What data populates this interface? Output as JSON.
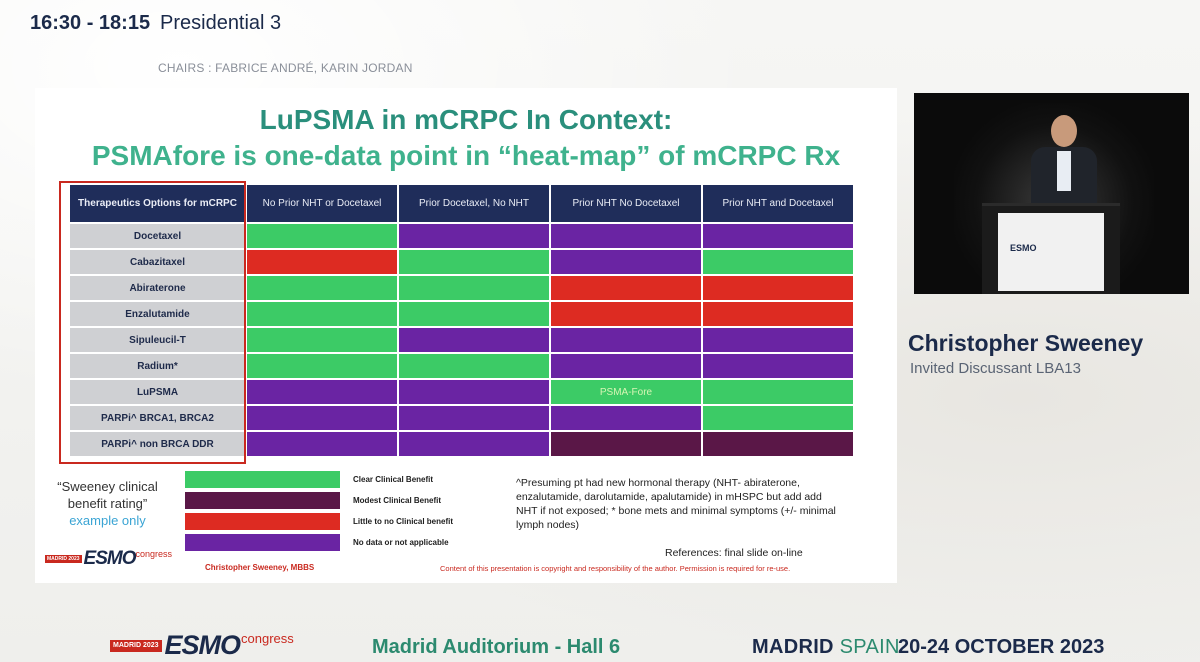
{
  "header": {
    "time": "16:30 - 18:15",
    "session": "Presidential 3",
    "chairs": "CHAIRS : FABRICE ANDRÉ, KARIN JORDAN"
  },
  "slide": {
    "title_line1": "LuPSMA in mCRPC In Context:",
    "title_line2": "PSMAfore is one-data point in “heat-map” of mCRPC Rx",
    "table": {
      "corner": "Therapeutics Options for mCRPC",
      "columns": [
        "No Prior NHT or Docetaxel",
        "Prior Docetaxel, No NHT",
        "Prior NHT No Docetaxel",
        "Prior NHT and Docetaxel"
      ],
      "rows": [
        {
          "label": "Docetaxel",
          "cells": [
            "green",
            "purple",
            "purple",
            "purple"
          ],
          "text": [
            "",
            "",
            "",
            ""
          ]
        },
        {
          "label": "Cabazitaxel",
          "cells": [
            "red",
            "green",
            "purple",
            "green"
          ],
          "text": [
            "",
            "",
            "",
            ""
          ]
        },
        {
          "label": "Abiraterone",
          "cells": [
            "green",
            "green",
            "red",
            "red"
          ],
          "text": [
            "",
            "",
            "",
            ""
          ]
        },
        {
          "label": "Enzalutamide",
          "cells": [
            "green",
            "green",
            "red",
            "red"
          ],
          "text": [
            "",
            "",
            "",
            ""
          ]
        },
        {
          "label": "Sipuleucil-T",
          "cells": [
            "green",
            "purple",
            "purple",
            "purple"
          ],
          "text": [
            "",
            "",
            "",
            ""
          ]
        },
        {
          "label": "Radium*",
          "cells": [
            "green",
            "green",
            "purple",
            "purple"
          ],
          "text": [
            "",
            "",
            "",
            ""
          ]
        },
        {
          "label": "LuPSMA",
          "cells": [
            "purple",
            "purple",
            "green",
            "green"
          ],
          "text": [
            "",
            "",
            "PSMA-Fore",
            ""
          ]
        },
        {
          "label": "PARPi^ BRCA1, BRCA2",
          "cells": [
            "purple",
            "purple",
            "purple",
            "green"
          ],
          "text": [
            "",
            "",
            "",
            ""
          ]
        },
        {
          "label": "PARPi^ non BRCA DDR",
          "cells": [
            "purple",
            "purple",
            "maroon",
            "maroon"
          ],
          "text": [
            "",
            "",
            "",
            ""
          ]
        }
      ]
    },
    "legend": [
      {
        "color": "green",
        "label": "Clear Clinical Benefit"
      },
      {
        "color": "maroon",
        "label": "Modest Clinical Benefit"
      },
      {
        "color": "red",
        "label": "Little to no Clinical benefit"
      },
      {
        "color": "purple",
        "label": "No data or not applicable"
      }
    ],
    "rating_line1": "“Sweeney clinical",
    "rating_line2": "benefit rating”",
    "rating_line3": "example only",
    "footnote": "^Presuming pt had new hormonal therapy (NHT- abiraterone, enzalutamide, darolutamide, apalutamide) in mHSPC but add add NHT if not exposed; * bone mets and minimal symptoms (+/- minimal lymph nodes)",
    "references": "References: final slide on-line",
    "author": "Christopher Sweeney, MBBS",
    "copyright": "Content of this presentation is copyright and responsibility of the author. Permission is required for re-use.",
    "logo_box": "MADRID 2023",
    "logo_word": "ESMO",
    "logo_sup": "congress"
  },
  "colors": {
    "green": "#3ccb66",
    "purple": "#6a24a3",
    "red": "#dd2b22",
    "maroon": "#5a1747"
  },
  "speaker": {
    "name": "Christopher Sweeney",
    "role": "Invited Discussant LBA13",
    "podium_logo": "ESMO"
  },
  "footer": {
    "logo_box": "MADRID 2023",
    "logo_word": "ESMO",
    "logo_sup": "congress",
    "venue": "Madrid Auditorium - Hall 6",
    "city": "MADRID",
    "country": "SPAIN",
    "dates": "20-24 OCTOBER 2023"
  }
}
